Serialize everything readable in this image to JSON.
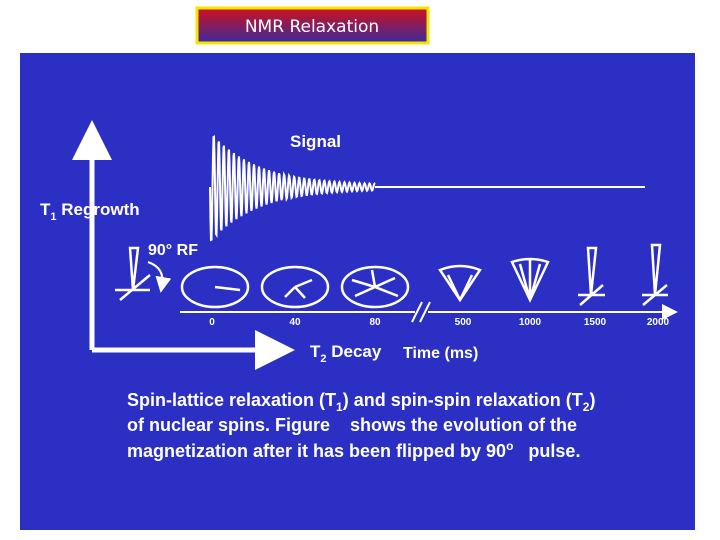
{
  "header": {
    "title": "NMR Relaxation"
  },
  "diagram": {
    "signal": "Signal",
    "t1": {
      "symbol": "T",
      "sub": "1",
      "text": " Regrowth"
    },
    "pulse": "90° RF",
    "times": [
      0,
      40,
      80,
      500,
      1000,
      1500,
      2000
    ],
    "t2": {
      "symbol": "T",
      "sub": "2",
      "text": " Decay"
    },
    "time_axis": "Time (ms)"
  },
  "caption": {
    "line1": [
      "Spin-lattice relaxation (T",
      "1",
      ") and spin-spin relaxation (T",
      "2",
      ")"
    ],
    "line2": "of nuclear spins. Figure    shows the evolution of the",
    "line3": [
      "magnetization after it has been flipped by 90",
      "o",
      "   pulse."
    ]
  }
}
